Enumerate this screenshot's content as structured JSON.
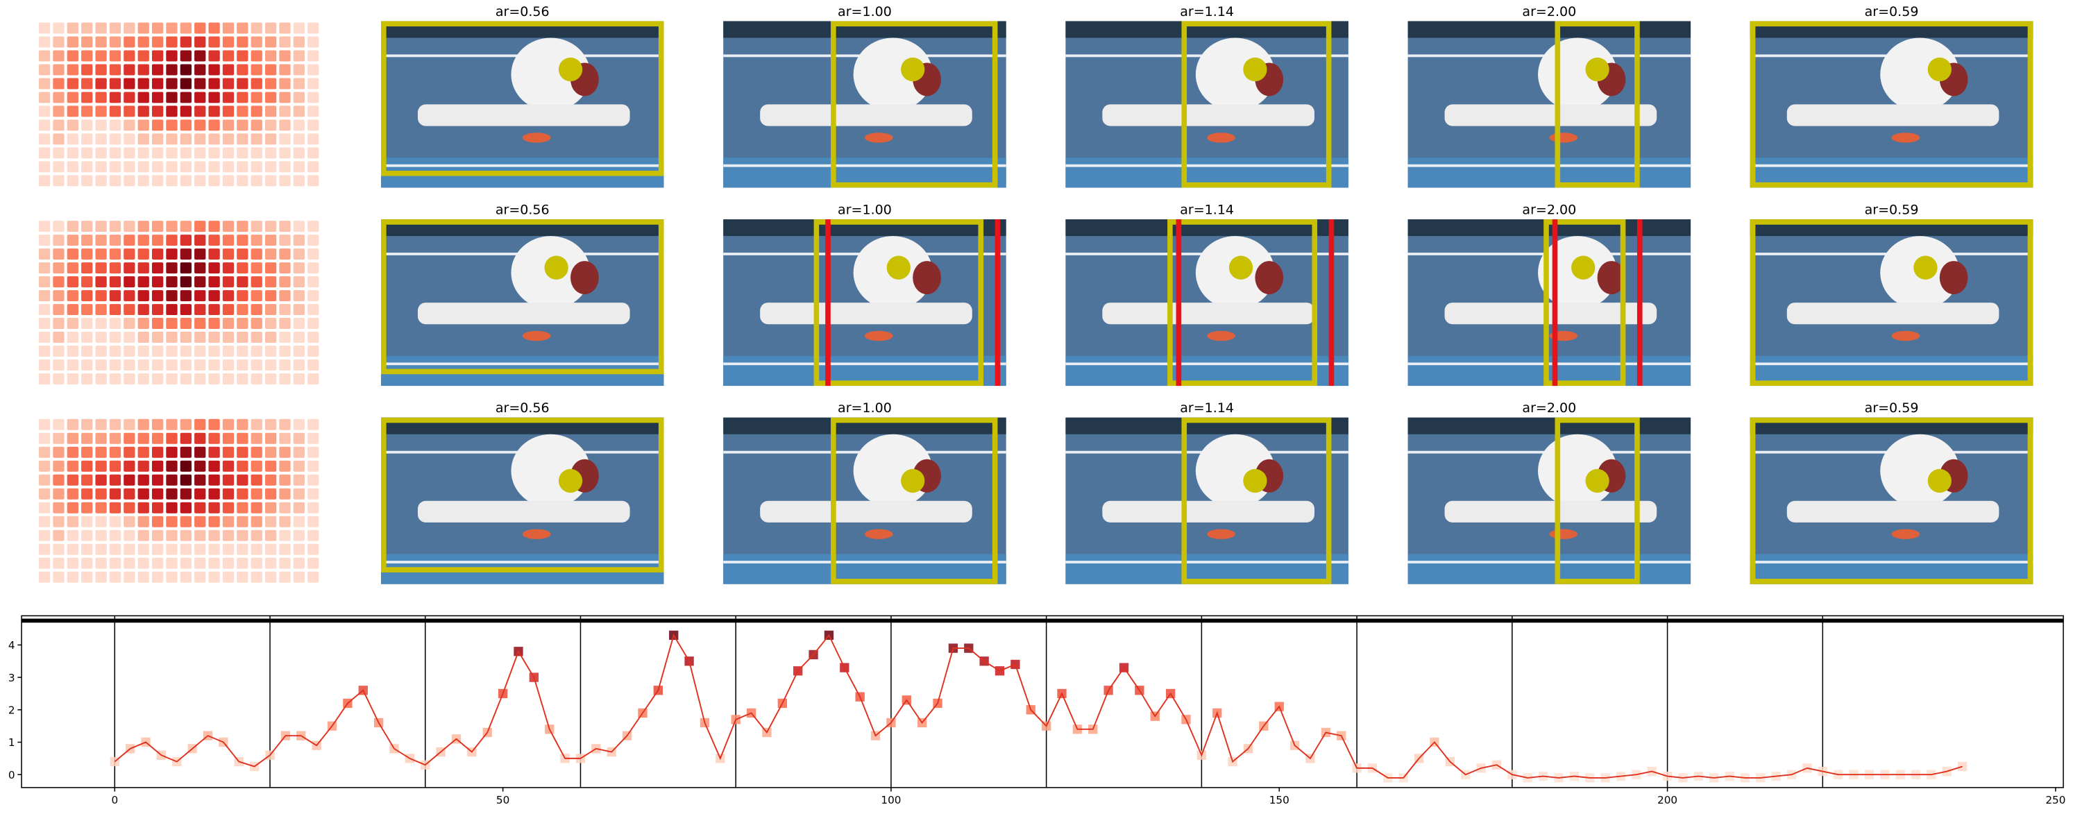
{
  "panels": {
    "rows": [
      {
        "titles": [
          "ar=0.56",
          "ar=1.00",
          "ar=1.14",
          "ar=2.00",
          "ar=0.59"
        ]
      },
      {
        "titles": [
          "ar=0.56",
          "ar=1.00",
          "ar=1.14",
          "ar=2.00",
          "ar=0.59"
        ]
      },
      {
        "titles": [
          "ar=0.56",
          "ar=1.00",
          "ar=1.14",
          "ar=2.00",
          "ar=0.59"
        ]
      }
    ]
  },
  "chart_data": [
    {
      "type": "heatmap",
      "colormap": [
        "#fff5f0",
        "#fcbba1",
        "#fb6a4a",
        "#cb181d",
        "#67000d"
      ],
      "values": [
        [
          1,
          1,
          2,
          2,
          2,
          2,
          2,
          3,
          3,
          3,
          3,
          4,
          4,
          3,
          3,
          2,
          2,
          2,
          1,
          1
        ],
        [
          1,
          2,
          3,
          3,
          3,
          3,
          4,
          4,
          4,
          5,
          6,
          6,
          5,
          4,
          4,
          3,
          3,
          2,
          2,
          1
        ],
        [
          2,
          3,
          4,
          4,
          4,
          4,
          5,
          5,
          6,
          7,
          8,
          8,
          6,
          5,
          5,
          4,
          3,
          3,
          2,
          1
        ],
        [
          2,
          3,
          4,
          5,
          5,
          5,
          6,
          6,
          7,
          8,
          9,
          8,
          7,
          6,
          5,
          4,
          4,
          3,
          2,
          1
        ],
        [
          2,
          4,
          5,
          5,
          6,
          6,
          7,
          7,
          7,
          8,
          9,
          8,
          7,
          6,
          6,
          5,
          4,
          3,
          2,
          1
        ],
        [
          2,
          3,
          4,
          5,
          5,
          6,
          6,
          7,
          7,
          8,
          8,
          7,
          7,
          6,
          5,
          4,
          4,
          3,
          2,
          1
        ],
        [
          1,
          3,
          4,
          4,
          4,
          5,
          5,
          6,
          6,
          7,
          7,
          6,
          6,
          5,
          4,
          4,
          3,
          2,
          2,
          1
        ],
        [
          1,
          2,
          2,
          1,
          1,
          1,
          2,
          3,
          4,
          4,
          4,
          4,
          4,
          3,
          3,
          3,
          2,
          2,
          1,
          1
        ],
        [
          1,
          2,
          1,
          1,
          1,
          1,
          1,
          2,
          2,
          2,
          2,
          2,
          2,
          2,
          2,
          2,
          2,
          1,
          1,
          1
        ],
        [
          1,
          1,
          1,
          1,
          1,
          1,
          1,
          1,
          1,
          1,
          1,
          1,
          1,
          1,
          1,
          1,
          1,
          1,
          1,
          1
        ],
        [
          1,
          1,
          1,
          1,
          1,
          1,
          1,
          1,
          1,
          1,
          1,
          1,
          1,
          1,
          1,
          1,
          1,
          1,
          1,
          1
        ],
        [
          1,
          1,
          1,
          1,
          1,
          1,
          1,
          1,
          1,
          1,
          1,
          1,
          1,
          1,
          1,
          1,
          1,
          1,
          1,
          1
        ]
      ]
    },
    {
      "type": "line",
      "color": "#e0301e",
      "colormap": [
        "#fee0d2",
        "#fcbba1",
        "#fb6a4a",
        "#cb181d",
        "#67000d"
      ],
      "xlim": [
        -12,
        251
      ],
      "ylim": [
        -0.4,
        4.9
      ],
      "xticks": [
        0,
        50,
        100,
        150,
        200,
        250
      ],
      "yticks": [
        0,
        1,
        2,
        3,
        4
      ],
      "vlines": [
        0,
        20,
        40,
        60,
        80,
        100,
        120,
        140,
        160,
        180,
        200,
        220
      ],
      "hline": 4.75,
      "x": [
        0,
        2,
        4,
        6,
        8,
        10,
        12,
        14,
        16,
        18,
        20,
        22,
        24,
        26,
        28,
        30,
        32,
        34,
        36,
        38,
        40,
        42,
        44,
        46,
        48,
        50,
        52,
        54,
        56,
        58,
        60,
        62,
        64,
        66,
        68,
        70,
        72,
        74,
        76,
        78,
        80,
        82,
        84,
        86,
        88,
        90,
        92,
        94,
        96,
        98,
        100,
        102,
        104,
        106,
        108,
        110,
        112,
        114,
        116,
        118,
        120,
        122,
        124,
        126,
        128,
        130,
        132,
        134,
        136,
        138,
        140,
        142,
        144,
        146,
        148,
        150,
        152,
        154,
        156,
        158,
        160,
        162,
        164,
        166,
        168,
        170,
        172,
        174,
        176,
        178,
        180,
        182,
        184,
        186,
        188,
        190,
        192,
        194,
        196,
        198,
        200,
        202,
        204,
        206,
        208,
        210,
        212,
        214,
        216,
        218,
        220,
        222,
        224,
        226,
        228,
        230,
        232,
        234,
        236,
        238
      ],
      "values": [
        0.4,
        0.8,
        1.0,
        0.6,
        0.4,
        0.8,
        1.2,
        1.0,
        0.4,
        0.25,
        0.6,
        1.2,
        1.2,
        0.9,
        1.5,
        2.2,
        2.6,
        1.6,
        0.8,
        0.5,
        0.3,
        0.7,
        1.1,
        0.7,
        1.3,
        2.5,
        3.8,
        3.0,
        1.4,
        0.5,
        0.5,
        0.8,
        0.7,
        1.2,
        1.9,
        2.6,
        4.3,
        3.5,
        1.6,
        0.5,
        1.7,
        1.9,
        1.3,
        2.2,
        3.2,
        3.7,
        4.3,
        3.3,
        2.4,
        1.2,
        1.6,
        2.3,
        1.6,
        2.2,
        3.9,
        3.9,
        3.5,
        3.2,
        3.4,
        2.0,
        1.5,
        2.5,
        1.4,
        1.4,
        2.6,
        3.3,
        2.6,
        1.8,
        2.5,
        1.7,
        0.6,
        1.9,
        0.4,
        0.8,
        1.5,
        2.1,
        0.9,
        0.5,
        1.3,
        1.2,
        0.2,
        0.2,
        -0.1,
        -0.1,
        0.5,
        1.0,
        0.4,
        0.0,
        0.2,
        0.3,
        0.0,
        -0.1,
        -0.05,
        -0.1,
        -0.05,
        -0.1,
        -0.1,
        -0.05,
        0.0,
        0.1,
        -0.05,
        -0.1,
        -0.05,
        -0.1,
        -0.05,
        -0.1,
        -0.1,
        -0.05,
        0.0,
        0.2,
        0.1,
        0.0,
        0.0,
        0.0,
        0.0,
        0.0,
        0.0,
        0.0,
        0.1,
        0.25
      ]
    }
  ]
}
